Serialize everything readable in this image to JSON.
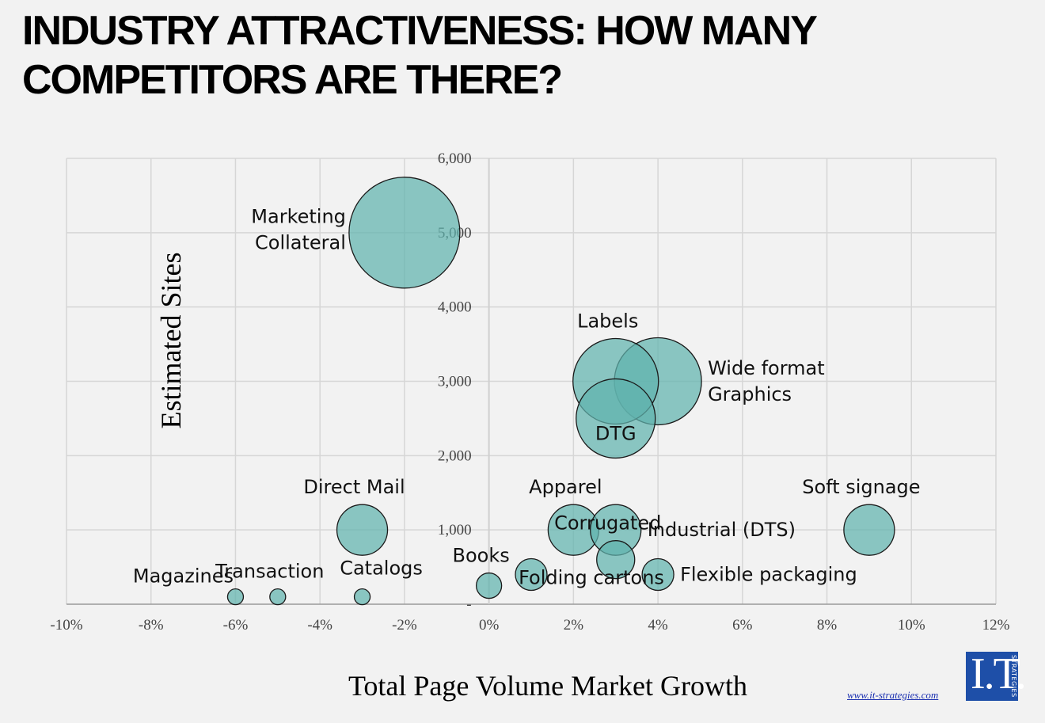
{
  "title": "INDUSTRY ATTRACTIVENESS: HOW MANY COMPETITORS ARE THERE?",
  "website": "www.it-strategies.com",
  "logo_text": "I.T.",
  "logo_side_text": "STRATEGIES",
  "colors": {
    "bubble_fill": "#5fb3ad",
    "bubble_stroke": "#1a1a1a",
    "grid": "#d6d6d6",
    "background": "#f2f2f2"
  },
  "chart_data": {
    "type": "bubble",
    "xlabel": "Total Page Volume Market Growth",
    "ylabel": "Estimated Sites",
    "xlim": [
      -0.1,
      0.12
    ],
    "ylim": [
      0,
      6000
    ],
    "x_ticks": [
      -0.1,
      -0.08,
      -0.06,
      -0.04,
      -0.02,
      0,
      0.02,
      0.04,
      0.06,
      0.08,
      0.1,
      0.12
    ],
    "x_tick_labels": [
      "-10%",
      "-8%",
      "-6%",
      "-4%",
      "-2%",
      "0%",
      "2%",
      "4%",
      "6%",
      "8%",
      "10%",
      "12%"
    ],
    "y_ticks": [
      0,
      1000,
      2000,
      3000,
      4000,
      5000,
      6000
    ],
    "y_tick_labels": [
      "-",
      "1,000",
      "2,000",
      "3,000",
      "4,000",
      "5,000",
      "6,000"
    ],
    "grid": true,
    "series": [
      {
        "name": "Marketing Collateral",
        "lines": [
          "Marketing",
          "Collateral"
        ],
        "x": -0.02,
        "y": 5000,
        "size": 70,
        "label_pos": "left"
      },
      {
        "name": "Labels",
        "lines": [
          "Labels"
        ],
        "x": 0.03,
        "y": 3000,
        "size": 54,
        "label_pos": "top"
      },
      {
        "name": "Wide format Graphics",
        "lines": [
          "Wide format",
          "Graphics"
        ],
        "x": 0.04,
        "y": 3000,
        "size": 55,
        "label_pos": "right"
      },
      {
        "name": "DTG",
        "lines": [
          "DTG"
        ],
        "x": 0.03,
        "y": 2500,
        "size": 50,
        "label_pos": "center"
      },
      {
        "name": "Direct Mail",
        "lines": [
          "Direct Mail"
        ],
        "x": -0.03,
        "y": 1000,
        "size": 32,
        "label_pos": "top"
      },
      {
        "name": "Apparel",
        "lines": [
          "Apparel"
        ],
        "x": 0.02,
        "y": 1000,
        "size": 32,
        "label_pos": "top"
      },
      {
        "name": "Industrial (DTS)",
        "lines": [
          "Industrial (DTS)"
        ],
        "x": 0.03,
        "y": 1000,
        "size": 32,
        "label_pos": "right"
      },
      {
        "name": "Soft signage",
        "lines": [
          "Soft signage"
        ],
        "x": 0.09,
        "y": 1000,
        "size": 32,
        "label_pos": "top"
      },
      {
        "name": "Corrugated",
        "lines": [
          "Corrugated"
        ],
        "x": 0.03,
        "y": 600,
        "size": 24,
        "label_pos": "top"
      },
      {
        "name": "Folding cartons",
        "lines": [
          "Folding cartons"
        ],
        "x": 0.01,
        "y": 400,
        "size": 20,
        "label_pos": "belowright"
      },
      {
        "name": "Flexible packaging",
        "lines": [
          "Flexible packaging"
        ],
        "x": 0.04,
        "y": 400,
        "size": 20,
        "label_pos": "right"
      },
      {
        "name": "Books",
        "lines": [
          "Books"
        ],
        "x": 0.0,
        "y": 250,
        "size": 16,
        "label_pos": "top"
      },
      {
        "name": "Catalogs",
        "lines": [
          "Catalogs"
        ],
        "x": -0.03,
        "y": 100,
        "size": 10,
        "label_pos": "topright"
      },
      {
        "name": "Transaction",
        "lines": [
          "Transaction"
        ],
        "x": -0.05,
        "y": 100,
        "size": 10,
        "label_pos": "top"
      },
      {
        "name": "Magazines",
        "lines": [
          "Magazines"
        ],
        "x": -0.06,
        "y": 100,
        "size": 10,
        "label_pos": "topleft"
      }
    ]
  }
}
